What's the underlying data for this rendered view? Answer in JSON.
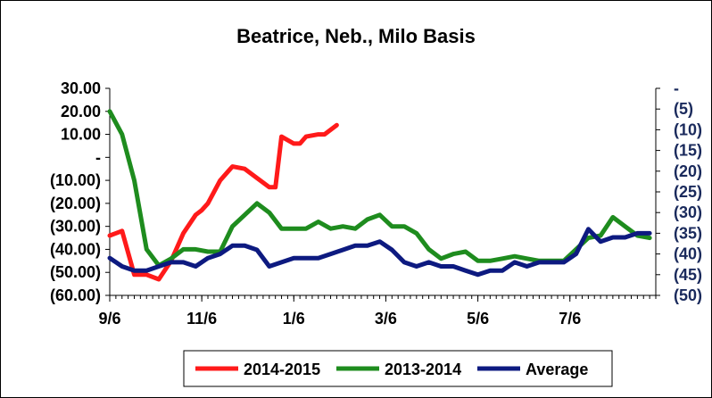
{
  "chart_data": {
    "type": "line",
    "title": "Beatrice, Neb., Milo Basis",
    "x_tick_labels": [
      "9/6",
      "11/6",
      "1/6",
      "3/6",
      "5/6",
      "7/6"
    ],
    "x_tick_weeks": [
      0,
      15,
      30,
      45,
      60,
      75
    ],
    "x_range_weeks": [
      0,
      89
    ],
    "left_axis": {
      "tick_values": [
        30,
        20,
        10,
        0,
        -10,
        -20,
        -30,
        -40,
        -50,
        -60
      ],
      "tick_labels": [
        "30.00",
        "20.00",
        "10.00",
        "-",
        "(10.00)",
        "(20.00)",
        "(30.00)",
        "(40.00)",
        "(50.00)",
        "(60.00)"
      ],
      "ylim": [
        -60,
        30
      ]
    },
    "right_axis": {
      "tick_values": [
        0,
        -5,
        -10,
        -15,
        -20,
        -25,
        -30,
        -35,
        -40,
        -45,
        -50
      ],
      "tick_labels": [
        "-",
        "(5)",
        "(10)",
        "(15)",
        "(20)",
        "(25)",
        "(30)",
        "(35)",
        "(40)",
        "(45)",
        "(50)"
      ],
      "ylim": [
        -50,
        0
      ],
      "color": "#1a2a5c"
    },
    "series": [
      {
        "name": "2014-2015",
        "axis": "left",
        "color": "#ff1a1a",
        "x": [
          0,
          2,
          4,
          6,
          8,
          10,
          12,
          14,
          15,
          16,
          18,
          20,
          22,
          24,
          26,
          27,
          28,
          30,
          31,
          32,
          34,
          35,
          37
        ],
        "y": [
          -34,
          -32,
          -51,
          -51,
          -53,
          -45,
          -33,
          -25,
          -23,
          -20,
          -10,
          -4,
          -5,
          -9,
          -13,
          -13,
          9,
          6,
          6,
          9,
          10,
          10,
          14
        ]
      },
      {
        "name": "2013-2014",
        "axis": "left",
        "color": "#1e8c1e",
        "x": [
          0,
          2,
          4,
          6,
          8,
          10,
          12,
          14,
          16,
          18,
          20,
          22,
          24,
          26,
          28,
          30,
          32,
          34,
          36,
          38,
          40,
          42,
          44,
          46,
          48,
          50,
          52,
          54,
          56,
          58,
          60,
          62,
          64,
          66,
          68,
          70,
          72,
          74,
          76,
          78,
          80,
          82,
          84,
          86,
          88
        ],
        "y": [
          20,
          10,
          -10,
          -40,
          -47,
          -44,
          -40,
          -40,
          -41,
          -41,
          -30,
          -25,
          -20,
          -24,
          -31,
          -31,
          -31,
          -28,
          -31,
          -30,
          -31,
          -27,
          -25,
          -30,
          -30,
          -33,
          -40,
          -44,
          -42,
          -41,
          -45,
          -45,
          -44,
          -43,
          -44,
          -45,
          -45,
          -45,
          -40,
          -35,
          -34,
          -26,
          -30,
          -34,
          -35
        ]
      },
      {
        "name": "Average",
        "axis": "right",
        "color": "#0d1a80",
        "x": [
          0,
          2,
          4,
          6,
          8,
          10,
          12,
          14,
          16,
          18,
          20,
          22,
          24,
          26,
          28,
          30,
          32,
          34,
          36,
          38,
          40,
          42,
          44,
          46,
          48,
          50,
          52,
          54,
          56,
          58,
          60,
          62,
          64,
          66,
          68,
          70,
          72,
          74,
          76,
          78,
          80,
          82,
          84,
          86,
          88
        ],
        "y": [
          -41,
          -43,
          -44,
          -44,
          -43,
          -42,
          -42,
          -43,
          -41,
          -40,
          -38,
          -38,
          -39,
          -43,
          -42,
          -41,
          -41,
          -41,
          -40,
          -39,
          -38,
          -38,
          -37,
          -39,
          -42,
          -43,
          -42,
          -43,
          -43,
          -44,
          -45,
          -44,
          -44,
          -42,
          -43,
          -42,
          -42,
          -42,
          -40,
          -34,
          -37,
          -36,
          -36,
          -35,
          -35
        ]
      }
    ],
    "legend": {
      "placement": "bottom"
    },
    "grid": false
  }
}
